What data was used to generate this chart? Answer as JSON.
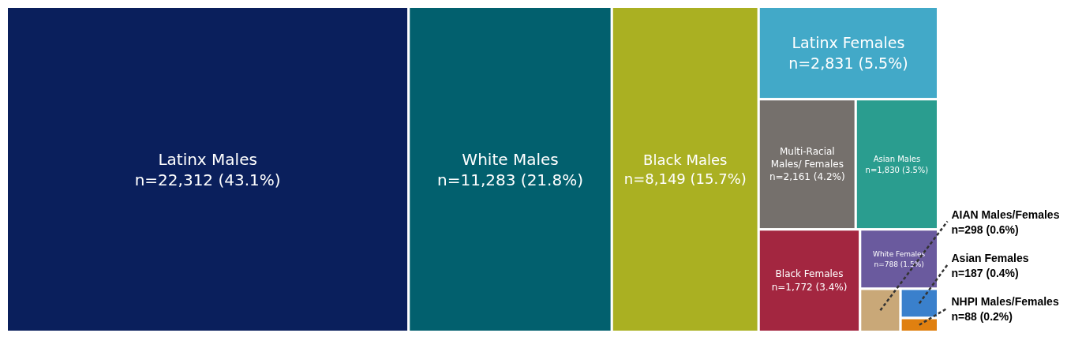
{
  "chart_data": {
    "type": "other",
    "categories": [
      "Latinx Males",
      "White Males",
      "Black Males",
      "Latinx Females",
      "Multi-Racial Males/ Females",
      "Asian Males",
      "Black Females",
      "White Females",
      "AIAN Males/Females",
      "Asian Females",
      "NHPI Males/Females"
    ],
    "values": [
      22312,
      11283,
      8149,
      2831,
      2161,
      1830,
      1772,
      788,
      298,
      187,
      88
    ],
    "value_labels": [
      "n=22,312 (43.1%)",
      "n=11,283 (21.8%)",
      "n=8,149 (15.7%)",
      "n=2,831 (5.5%)",
      "n=2,161 (4.2%)",
      "n=1,830 (3.5%)",
      "n=1,772 (3.4%)",
      "n=788 (1.5%)",
      "n=298 (0.6%)",
      "n=187 (0.4%)",
      "n=88 (0.2%)"
    ],
    "colors": [
      "#0a1f5c",
      "#02606e",
      "#aab022",
      "#42a9c8",
      "#75706c",
      "#2a9d8f",
      "#a32640",
      "#6a5a9e",
      "#c9a878",
      "#3a80cc",
      "#e08010"
    ]
  }
}
